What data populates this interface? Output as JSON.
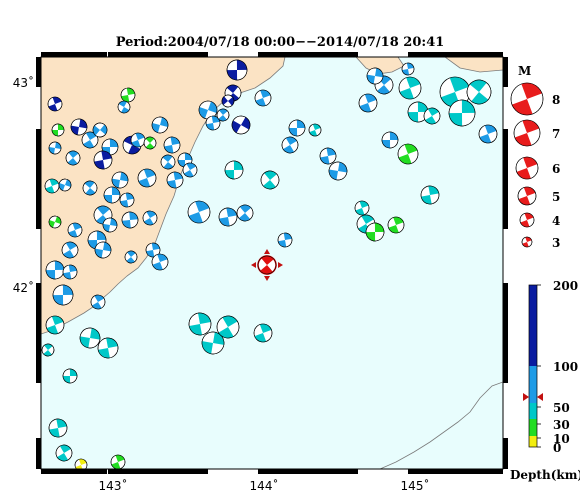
{
  "title": "Period:2004/07/18 00:00−−2014/07/18 20:41",
  "map": {
    "lon_labels": [
      {
        "value": 143,
        "text": "143˚"
      },
      {
        "value": 144,
        "text": "144˚"
      },
      {
        "value": 145,
        "text": "145˚"
      }
    ],
    "lat_labels": [
      {
        "value": 43,
        "text": "43˚"
      },
      {
        "value": 42,
        "text": "42˚"
      }
    ],
    "colors": {
      "sea": "#e8fdfd",
      "land": "#fbe3c4",
      "coast": "#7a7a7a",
      "main_event": "#e01010",
      "triangle": "#c21010"
    },
    "main_event": {
      "lon": 144.02,
      "lat": 42.11
    }
  },
  "magnitude_legend": {
    "title": "M",
    "items": [
      "8",
      "7",
      "6",
      "5",
      "4",
      "3"
    ]
  },
  "depth_scale": {
    "title": "Depth(km)",
    "ticks": [
      "200",
      "100",
      "50",
      "30",
      "10",
      "0"
    ],
    "colors": {
      "deep": "#0a1ca0",
      "mid": "#1e9be6",
      "shallow": "#00c8c8",
      "green": "#22dd22",
      "yellow": "#f2ee10"
    }
  }
}
